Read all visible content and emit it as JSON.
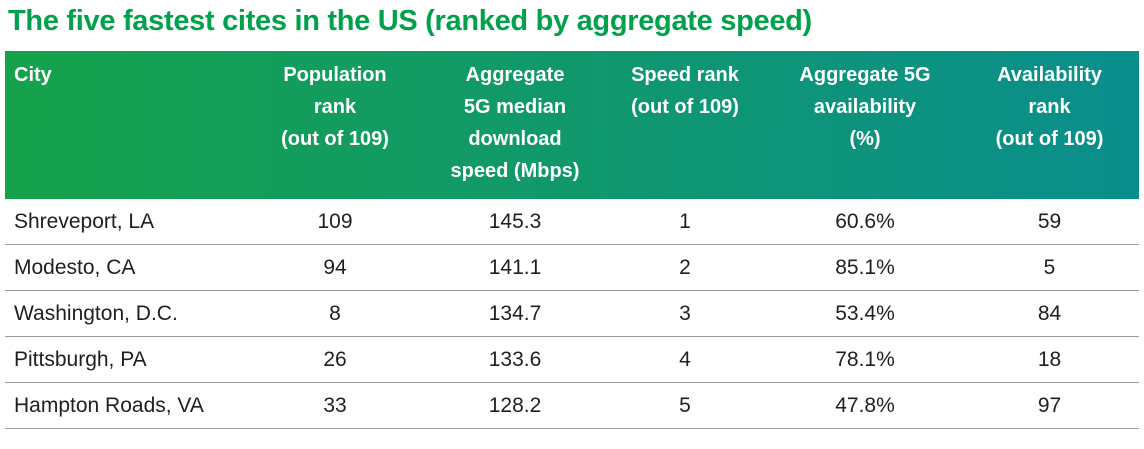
{
  "title": "The five fastest cites in the US (ranked by aggregate speed)",
  "colors": {
    "title_green": "#00a14b",
    "header_gradient_left": "#16a24b",
    "header_gradient_right": "#0a8e8d",
    "header_text": "#ffffff",
    "row_text": "#1f1f1f",
    "divider_gray": "#9a9a9a",
    "background": "#ffffff"
  },
  "table": {
    "headers": [
      {
        "label": "City"
      },
      {
        "label": "Population\nrank\n(out of 109)"
      },
      {
        "label": "Aggregate\n5G median\ndownload\nspeed (Mbps)"
      },
      {
        "label": "Speed rank\n(out of 109)"
      },
      {
        "label": "Aggregate 5G\navailability\n(%)"
      },
      {
        "label": "Availability\nrank\n(out of 109)"
      }
    ],
    "rows": [
      {
        "city": "Shreveport, LA",
        "population_rank": "109",
        "download_speed": "145.3",
        "speed_rank": "1",
        "availability": "60.6%",
        "availability_rank": "59"
      },
      {
        "city": "Modesto, CA",
        "population_rank": "94",
        "download_speed": "141.1",
        "speed_rank": "2",
        "availability": "85.1%",
        "availability_rank": "5"
      },
      {
        "city": "Washington, D.C.",
        "population_rank": "8",
        "download_speed": "134.7",
        "speed_rank": "3",
        "availability": "53.4%",
        "availability_rank": "84"
      },
      {
        "city": "Pittsburgh, PA",
        "population_rank": "26",
        "download_speed": "133.6",
        "speed_rank": "4",
        "availability": "78.1%",
        "availability_rank": "18"
      },
      {
        "city": "Hampton Roads, VA",
        "population_rank": "33",
        "download_speed": "128.2",
        "speed_rank": "5",
        "availability": "47.8%",
        "availability_rank": "97"
      }
    ]
  },
  "chart_data": {
    "type": "table",
    "title": "The five fastest cites in the US (ranked by aggregate speed)",
    "columns": [
      "City",
      "Population rank (out of 109)",
      "Aggregate 5G median download speed (Mbps)",
      "Speed rank (out of 109)",
      "Aggregate 5G availability (%)",
      "Availability rank (out of 109)"
    ],
    "rows": [
      [
        "Shreveport, LA",
        109,
        145.3,
        1,
        "60.6%",
        59
      ],
      [
        "Modesto, CA",
        94,
        141.1,
        2,
        "85.1%",
        5
      ],
      [
        "Washington, D.C.",
        8,
        134.7,
        3,
        "53.4%",
        84
      ],
      [
        "Pittsburgh, PA",
        26,
        133.6,
        4,
        "78.1%",
        18
      ],
      [
        "Hampton Roads, VA",
        33,
        128.2,
        5,
        "47.8%",
        97
      ]
    ]
  }
}
